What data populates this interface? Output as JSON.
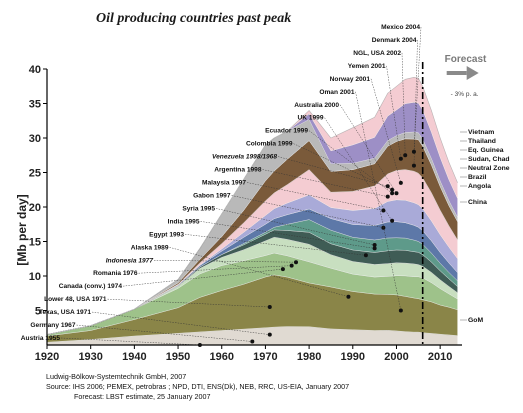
{
  "chart_data": {
    "type": "area",
    "title": "Oil producing countries past peak",
    "ylabel": "[Mb per day]",
    "xlabel": "",
    "xlim": [
      1920,
      2015
    ],
    "ylim": [
      0,
      40
    ],
    "x_ticks": [
      "1920",
      "1930",
      "1940",
      "1950",
      "1960",
      "1970",
      "1980",
      "1990",
      "2000",
      "2010"
    ],
    "y_ticks": [
      "5",
      "10",
      "15",
      "20",
      "25",
      "30",
      "35",
      "40"
    ],
    "forecast": {
      "label": "Forecast",
      "start_year": 2006,
      "decline_note": "- 3% p. a."
    },
    "x": [
      1920,
      1930,
      1940,
      1950,
      1955,
      1960,
      1965,
      1970,
      1972,
      1975,
      1980,
      1985,
      1990,
      1995,
      1998,
      2000,
      2002,
      2004,
      2005,
      2006,
      2008,
      2010,
      2012,
      2014
    ],
    "total_production": [
      1.5,
      2.8,
      5.2,
      9.5,
      14,
      19,
      24,
      29,
      30,
      31,
      34,
      30,
      31.5,
      33,
      36.5,
      37.5,
      38.5,
      38.8,
      38.7,
      37.5,
      34,
      30,
      26.5,
      23.5
    ],
    "series": [
      {
        "values": [
          0.4,
          0.8,
          1.3,
          1.7,
          1.9,
          2.1,
          2.3,
          2.6,
          2.7,
          2.7,
          2.6,
          2.5,
          2.4,
          2.3,
          2.3,
          2.2,
          2.1,
          2.0,
          2.0,
          1.9,
          1.8,
          1.7,
          1.6,
          1.5
        ]
      },
      {
        "values": [
          0.9,
          1.3,
          2.4,
          3.7,
          5.0,
          5.8,
          6.5,
          7.6,
          7.9,
          7.2,
          6.2,
          6.5,
          6.0,
          5.8,
          5.6,
          5.6,
          5.5,
          5.3,
          5.2,
          5.1,
          4.9,
          4.6,
          4.4,
          4.1
        ]
      },
      {
        "values": [
          0.2,
          0.7,
          1.5,
          2.8,
          3.4,
          3.6,
          3.4,
          3.2,
          3.3,
          3.1,
          3.0,
          2.9,
          2.7,
          2.7,
          2.8,
          3.0,
          3.2,
          3.3,
          3.4,
          3.4,
          3.0,
          2.6,
          2.1,
          1.7
        ]
      },
      {
        "values": [
          0.0,
          0.0,
          0.0,
          0.3,
          0.8,
          1.2,
          1.6,
          2.2,
          2.4,
          2.4,
          2.5,
          2.1,
          2.0,
          2.0,
          2.0,
          2.0,
          2.0,
          2.0,
          1.9,
          1.8,
          1.6,
          1.4,
          1.2,
          1.0
        ]
      },
      {
        "values": [
          0.0,
          0.0,
          0.0,
          0.1,
          0.2,
          0.4,
          0.7,
          1.0,
          1.1,
          1.3,
          1.7,
          1.7,
          1.8,
          1.9,
          2.0,
          2.0,
          2.0,
          1.9,
          1.9,
          1.8,
          1.6,
          1.4,
          1.2,
          1.0
        ]
      },
      {
        "values": [
          0.0,
          0.0,
          0.0,
          0.0,
          0.0,
          0.0,
          0.2,
          0.3,
          0.4,
          0.9,
          1.8,
          2.1,
          2.0,
          2.0,
          2.0,
          1.9,
          1.9,
          1.8,
          1.7,
          1.6,
          1.4,
          1.2,
          1.0,
          0.9
        ]
      },
      {
        "values": [
          0.0,
          0.0,
          0.0,
          0.1,
          0.2,
          0.5,
          0.9,
          1.2,
          1.3,
          1.4,
          1.5,
          1.8,
          2.0,
          2.3,
          2.5,
          2.5,
          2.4,
          2.3,
          2.2,
          2.1,
          1.9,
          1.7,
          1.5,
          1.3
        ]
      },
      {
        "values": [
          0.0,
          0.0,
          0.0,
          0.0,
          0.1,
          0.3,
          0.7,
          1.3,
          1.5,
          1.7,
          2.0,
          1.7,
          2.2,
          2.7,
          3.2,
          3.4,
          3.5,
          3.5,
          3.5,
          3.4,
          3.1,
          2.8,
          2.5,
          2.2
        ]
      },
      {
        "values": [
          0.0,
          0.0,
          0.0,
          0.1,
          0.3,
          0.8,
          1.4,
          2.2,
          2.4,
          2.7,
          3.6,
          2.4,
          3.0,
          3.6,
          4.3,
          4.6,
          4.8,
          4.9,
          4.9,
          4.8,
          4.4,
          3.9,
          3.4,
          3.0
        ]
      },
      {
        "values": [
          0.0,
          0.0,
          0.0,
          0.2,
          0.5,
          1.0,
          1.8,
          3.0,
          3.3,
          3.7,
          4.1,
          3.2,
          3.4,
          3.5,
          4.3,
          4.5,
          4.8,
          5.0,
          5.2,
          4.9,
          4.3,
          3.7,
          3.2,
          2.9
        ]
      },
      {
        "values": [
          0.0,
          0.0,
          0.0,
          0.5,
          1.6,
          3.3,
          4.5,
          5.4,
          5.0,
          4.1,
          3.0,
          1.2,
          1.0,
          0.9,
          0.9,
          0.9,
          1.0,
          1.1,
          1.1,
          1.1,
          1.0,
          0.9,
          0.8,
          0.7
        ]
      },
      {
        "values": [
          0.0,
          0.0,
          0.0,
          0.0,
          0.0,
          0.0,
          0.0,
          0.0,
          0.0,
          0.0,
          0.8,
          2.0,
          2.9,
          3.3,
          3.8,
          4.0,
          4.5,
          4.6,
          4.6,
          4.5,
          4.1,
          3.7,
          3.3,
          3.0
        ]
      },
      {
        "values": [
          0.0,
          0.0,
          0.0,
          0.0,
          0.0,
          0.0,
          0.0,
          0.0,
          0.0,
          0.0,
          0.5,
          2.0,
          2.7,
          3.2,
          3.6,
          3.7,
          3.8,
          3.9,
          3.9,
          3.7,
          3.4,
          3.1,
          2.8,
          2.5
        ]
      }
    ],
    "annotations": [
      {
        "label": "Austria 1955",
        "year": 1955,
        "value": 0
      },
      {
        "label": "Germany 1967",
        "year": 1967,
        "value": 0.5
      },
      {
        "label": "Texas, USA 1971",
        "year": 1971,
        "value": 1.5
      },
      {
        "label": "Lower 48, USA  1971",
        "year": 1971,
        "value": 5.5
      },
      {
        "label": "Canada (conv.) 1974",
        "year": 1974,
        "value": 11
      },
      {
        "label": "Romania 1976",
        "year": 1976,
        "value": 11.5
      },
      {
        "label": "Indonesia 1977",
        "year": 1977,
        "value": 12,
        "italic": true
      },
      {
        "label": "Alaska 1989",
        "year": 1989,
        "value": 7
      },
      {
        "label": "Egypt 1993",
        "year": 1993,
        "value": 13
      },
      {
        "label": "India 1995",
        "year": 1995,
        "value": 14
      },
      {
        "label": "Syria 1995",
        "year": 1995,
        "value": 14.5
      },
      {
        "label": "Gabon 1997",
        "year": 1997,
        "value": 17
      },
      {
        "label": "Malaysia 1997",
        "year": 1997,
        "value": 19.5
      },
      {
        "label": "Argentina 1998",
        "year": 1998,
        "value": 21.5
      },
      {
        "label": "Venezuela 1998/1968",
        "year": 1998,
        "value": 23,
        "italic": true
      },
      {
        "label": "Colombia 1999",
        "year": 1999,
        "value": 22.5
      },
      {
        "label": "Ecuador 1999",
        "year": 1999,
        "value": 22
      },
      {
        "label": "UK 1999",
        "year": 1999,
        "value": 18
      },
      {
        "label": "Australia 2000",
        "year": 2000,
        "value": 22
      },
      {
        "label": "Oman 2001",
        "year": 2001,
        "value": 5
      },
      {
        "label": "Norway 2001",
        "year": 2001,
        "value": 23.5
      },
      {
        "label": "Yemen 2001",
        "year": 2001,
        "value": 27
      },
      {
        "label": "NGL, USA 2002",
        "year": 2002,
        "value": 27.5
      },
      {
        "label": "Denmark 2004",
        "year": 2004,
        "value": 26
      },
      {
        "label": "Mexico 2004",
        "year": 2004,
        "value": 28
      }
    ],
    "right_labels": [
      "Vietnam",
      "Thailand",
      "Eq. Guinea",
      "Sudan, Chad",
      "Neutral Zone",
      "Brazil",
      "Angola",
      "China",
      "GoM"
    ],
    "colors": {
      "base": "#e0dad2",
      "olive": "#8a8548",
      "lightgreen": "#9ec28a",
      "mint": "#c8dfc0",
      "dark": "#3f5c55",
      "teal": "#5e9a8a",
      "blue": "#5d78a8",
      "violet": "#a9aad8",
      "pink": "#f4ccd2",
      "brown": "#7a5a3a",
      "gray": "#b9b9b9",
      "purple": "#9d8fc6"
    }
  },
  "credits": {
    "line1": "Ludwig-Bölkow-Systemtechnik GmbH, 2007",
    "line2": "Source: IHS 2006; PEMEX, petrobras ;  NPD, DTI, ENS(Dk), NEB, RRC, US-EIA, January 2007",
    "line3": "Forecast: LBST estimate, 25 January 2007"
  }
}
